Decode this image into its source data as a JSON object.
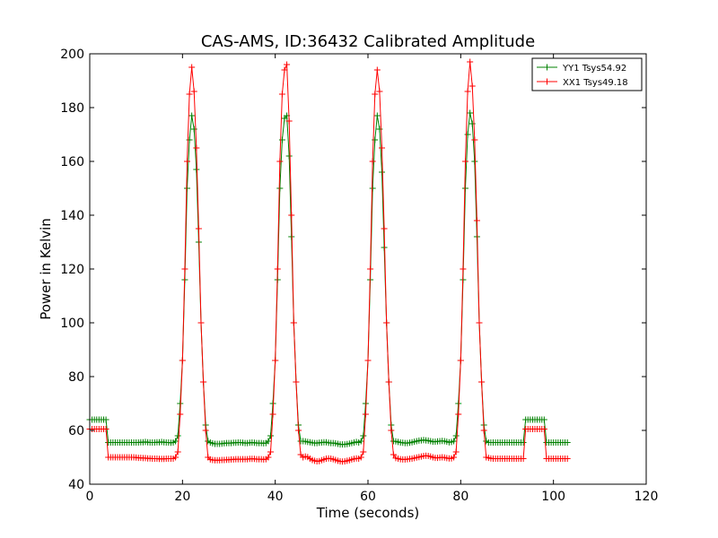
{
  "chart_data": {
    "type": "line",
    "title": "CAS-AMS, ID:36432 Calibrated Amplitude",
    "xlabel": "Time (seconds)",
    "ylabel": "Power in Kelvin",
    "xlim": [
      0,
      120
    ],
    "ylim": [
      40,
      200
    ],
    "xticks": [
      0,
      20,
      40,
      60,
      80,
      100,
      120
    ],
    "yticks": [
      40,
      60,
      80,
      100,
      120,
      140,
      160,
      180,
      200
    ],
    "grid": false,
    "legend_position": "top-right",
    "x_step": 0.5,
    "x_start": 0,
    "series": [
      {
        "name": "YY1 Tsys54.92",
        "color": "#008000",
        "marker": "+",
        "values": [
          64,
          64,
          64,
          64,
          64,
          64,
          64,
          64,
          55.5,
          55.5,
          55.5,
          55.5,
          55.5,
          55.5,
          55.5,
          55.5,
          55.5,
          55.5,
          55.5,
          55.5,
          55.5,
          55.5,
          55.6,
          55.6,
          55.7,
          55.6,
          55.5,
          55.5,
          55.5,
          55.6,
          55.6,
          55.7,
          55.6,
          55.5,
          55.5,
          55.4,
          55.5,
          56,
          58,
          70,
          86,
          116,
          150,
          168,
          177,
          172,
          157,
          130,
          100,
          78,
          62,
          56,
          55.5,
          55.2,
          55,
          55,
          55,
          55.1,
          55.2,
          55.3,
          55.3,
          55.3,
          55.4,
          55.4,
          55.5,
          55.5,
          55.4,
          55.3,
          55.3,
          55.4,
          55.5,
          55.4,
          55.3,
          55.3,
          55.3,
          55.2,
          55.3,
          56,
          58,
          70,
          86,
          116,
          150,
          168,
          176,
          177,
          162,
          132,
          100,
          78,
          62,
          56,
          56,
          55.9,
          55.7,
          55.6,
          55.4,
          55.3,
          55.3,
          55.4,
          55.5,
          55.6,
          55.6,
          55.4,
          55.3,
          55.3,
          55.2,
          55.0,
          54.8,
          54.8,
          54.8,
          54.9,
          55.1,
          55.3,
          55.5,
          55.7,
          55.5,
          56,
          58,
          70,
          86,
          116,
          150,
          168,
          177,
          172,
          156,
          128,
          100,
          78,
          62,
          56,
          55.9,
          55.7,
          55.5,
          55.4,
          55.3,
          55.3,
          55.4,
          55.6,
          55.8,
          56,
          56.2,
          56.3,
          56.4,
          56.3,
          56.2,
          56,
          55.8,
          55.8,
          55.9,
          56,
          56.1,
          56,
          55.8,
          55.6,
          55.7,
          56,
          58,
          70,
          86,
          116,
          150,
          170,
          178,
          174,
          160,
          132,
          100,
          78,
          62,
          56,
          55.5,
          55.5,
          55.5,
          55.5,
          55.5,
          55.5,
          55.5,
          55.5,
          55.5,
          55.5,
          55.5,
          55.5,
          55.5,
          55.5,
          55.5,
          55.5,
          64,
          64,
          64,
          64,
          64,
          64,
          64,
          64,
          64,
          55.5,
          55.5,
          55.5,
          55.5,
          55.5,
          55.5,
          55.5,
          55.5,
          55.5,
          55.5
        ]
      },
      {
        "name": "XX1 Tsys49.18",
        "color": "#ff0000",
        "marker": "+",
        "values": [
          60.5,
          60.5,
          60.5,
          60.5,
          60.5,
          60.5,
          60.5,
          60.5,
          50,
          50,
          50,
          50,
          50,
          50,
          50,
          50,
          50,
          50,
          50,
          50,
          49.9,
          49.8,
          49.8,
          49.7,
          49.7,
          49.6,
          49.6,
          49.5,
          49.5,
          49.5,
          49.4,
          49.4,
          49.4,
          49.5,
          49.5,
          49.5,
          49.5,
          50,
          52,
          66,
          86,
          120,
          160,
          185,
          195,
          186,
          165,
          135,
          100,
          78,
          60,
          50,
          49.2,
          49,
          48.9,
          48.9,
          48.9,
          49,
          49,
          49.1,
          49.1,
          49.2,
          49.2,
          49.3,
          49.3,
          49.3,
          49.3,
          49.3,
          49.3,
          49.4,
          49.4,
          49.4,
          49.3,
          49.3,
          49.3,
          49.2,
          49.3,
          50,
          52,
          66,
          86,
          120,
          160,
          185,
          194,
          196,
          175,
          140,
          100,
          78,
          60,
          51,
          50,
          50.3,
          50.1,
          49.5,
          49,
          48.7,
          48.5,
          48.6,
          48.9,
          49.2,
          49.5,
          49.6,
          49.5,
          49.3,
          49,
          48.7,
          48.5,
          48.4,
          48.5,
          48.7,
          48.9,
          49.2,
          49.4,
          49.6,
          49.5,
          50,
          52,
          66,
          86,
          120,
          160,
          185,
          194,
          186,
          165,
          135,
          100,
          78,
          60,
          51,
          49.7,
          49.5,
          49.3,
          49.2,
          49.2,
          49.3,
          49.4,
          49.5,
          49.7,
          49.9,
          50.1,
          50.3,
          50.5,
          50.6,
          50.5,
          50.3,
          50,
          49.8,
          49.8,
          49.9,
          50,
          49.9,
          49.7,
          49.6,
          49.6,
          50,
          52,
          66,
          86,
          120,
          160,
          186,
          197,
          188,
          168,
          138,
          100,
          78,
          60,
          50,
          49.8,
          49.6,
          49.5,
          49.5,
          49.5,
          49.5,
          49.5,
          49.5,
          49.5,
          49.5,
          49.5,
          49.5,
          49.5,
          49.5,
          49.5,
          49.5,
          60.5,
          60.5,
          60.5,
          60.5,
          60.5,
          60.5,
          60.5,
          60.5,
          60.5,
          49.5,
          49.5,
          49.5,
          49.5,
          49.5,
          49.5,
          49.5,
          49.5,
          49.5,
          49.5
        ]
      }
    ]
  }
}
